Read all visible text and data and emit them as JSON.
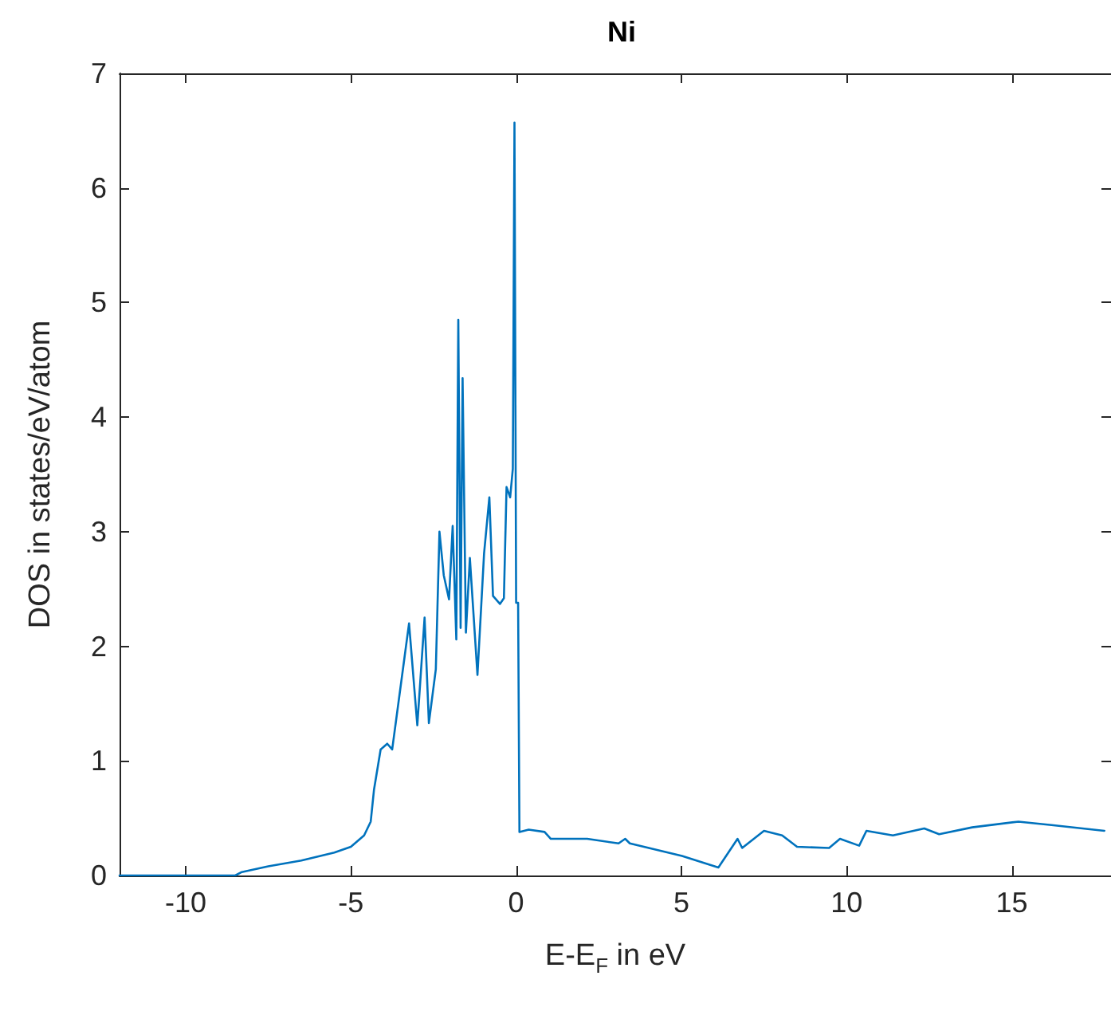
{
  "chart_data": {
    "type": "line",
    "title": "Ni",
    "xlabel": "E-E$_{F}$ in eV",
    "ylabel": "DOS in states/eV/atom",
    "xlim": [
      -12,
      18
    ],
    "xticks": [
      -10,
      -5,
      0,
      5,
      10,
      15
    ],
    "ylim": [
      0,
      7
    ],
    "yticks": [
      0,
      1,
      2,
      3,
      4,
      5,
      6,
      7
    ],
    "grid": false,
    "marker": "none",
    "line_style": "solid",
    "series": [
      {
        "color": "#0072bd",
        "x": [
          -12,
          -8.5,
          -8.3,
          -7.5,
          -6.5,
          -5.5,
          -5.0,
          -4.6,
          -4.4,
          -4.3,
          -4.1,
          -3.9,
          -3.75,
          -3.24,
          -2.99,
          -2.77,
          -2.64,
          -2.43,
          -2.32,
          -2.19,
          -2.03,
          -1.92,
          -1.81,
          -1.75,
          -1.68,
          -1.62,
          -1.52,
          -1.4,
          -1.17,
          -0.97,
          -0.81,
          -0.7,
          -0.49,
          -0.37,
          -0.29,
          -0.18,
          -0.1,
          -0.05,
          0.0,
          0.06,
          0.1,
          0.38,
          0.86,
          1.05,
          2.15,
          3.1,
          3.3,
          3.44,
          5.02,
          6.12,
          6.7,
          6.84,
          7.5,
          8.05,
          8.5,
          9.47,
          9.8,
          10.38,
          10.6,
          11.4,
          12.35,
          12.8,
          13.8,
          15.2,
          16.2,
          17.8
        ],
        "values": [
          0,
          0,
          0.03,
          0.08,
          0.13,
          0.2,
          0.25,
          0.35,
          0.47,
          0.75,
          1.1,
          1.15,
          1.1,
          2.2,
          1.31,
          2.25,
          1.33,
          1.8,
          3.0,
          2.62,
          2.41,
          3.05,
          2.06,
          4.85,
          2.16,
          4.34,
          2.12,
          2.77,
          1.75,
          2.81,
          3.3,
          2.44,
          2.37,
          2.42,
          3.39,
          3.3,
          3.55,
          6.57,
          2.38,
          2.38,
          0.38,
          0.4,
          0.38,
          0.32,
          0.32,
          0.28,
          0.32,
          0.28,
          0.17,
          0.07,
          0.32,
          0.24,
          0.39,
          0.35,
          0.25,
          0.24,
          0.32,
          0.26,
          0.39,
          0.35,
          0.41,
          0.36,
          0.42,
          0.47,
          0.44,
          0.39
        ]
      }
    ]
  }
}
